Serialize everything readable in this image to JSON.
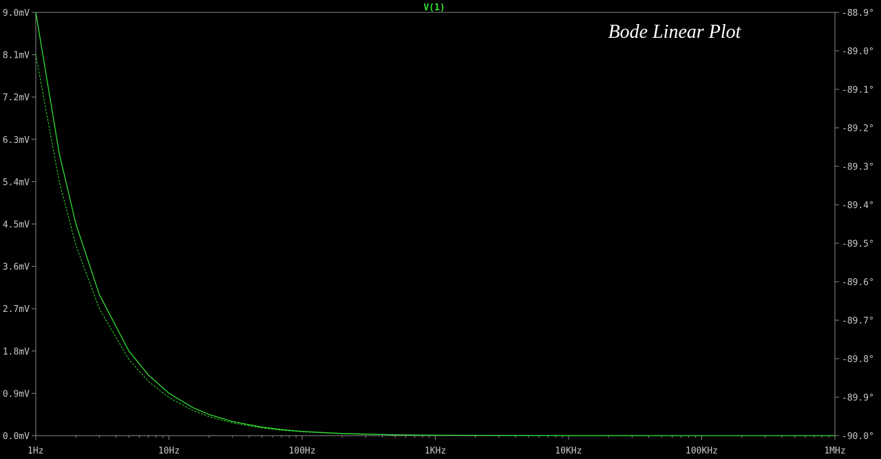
{
  "chart_data": {
    "type": "line",
    "title": "Bode Linear Plot",
    "trace_label": "V(1)",
    "x_scale": "log",
    "x_range_hz": [
      1,
      1000000
    ],
    "x_ticks": [
      {
        "value": 1,
        "label": "1Hz"
      },
      {
        "value": 10,
        "label": "10Hz"
      },
      {
        "value": 100,
        "label": "100Hz"
      },
      {
        "value": 1000,
        "label": "1KHz"
      },
      {
        "value": 10000,
        "label": "10KHz"
      },
      {
        "value": 100000,
        "label": "100KHz"
      },
      {
        "value": 1000000,
        "label": "1MHz"
      }
    ],
    "y_left": {
      "unit": "mV",
      "range": [
        0,
        9.0
      ],
      "tick_labels": [
        "0.0mV",
        "0.9mV",
        "1.8mV",
        "2.7mV",
        "3.6mV",
        "4.5mV",
        "5.4mV",
        "6.3mV",
        "7.2mV",
        "8.1mV",
        "9.0mV"
      ]
    },
    "y_right": {
      "unit": "degrees",
      "range": [
        -90.0,
        -88.9
      ],
      "tick_labels": [
        "-90.0°",
        "-89.9°",
        "-89.8°",
        "-89.7°",
        "-89.6°",
        "-89.5°",
        "-89.4°",
        "-89.3°",
        "-89.2°",
        "-89.1°",
        "-89.0°",
        "-88.9°"
      ]
    },
    "grid": false,
    "series": [
      {
        "role": "magnitude",
        "style": "solid",
        "color": "#32e032",
        "x": [
          1,
          1.5,
          2,
          3,
          5,
          7,
          10,
          15,
          20,
          30,
          50,
          70,
          100,
          200,
          500,
          1000,
          10000,
          100000,
          1000000
        ],
        "y": [
          9.0,
          6.0,
          4.5,
          3.0,
          1.8,
          1.29,
          0.9,
          0.6,
          0.45,
          0.3,
          0.18,
          0.129,
          0.09,
          0.045,
          0.018,
          0.009,
          0.0009,
          9e-05,
          9e-06
        ]
      },
      {
        "role": "phase",
        "style": "dashed",
        "color": "#32e032",
        "x": [
          1,
          1.5,
          2,
          3,
          5,
          7,
          10,
          15,
          20,
          30,
          50,
          70,
          100,
          200,
          500,
          1000,
          10000,
          100000,
          1000000
        ],
        "y": [
          -89.01,
          -89.34,
          -89.505,
          -89.67,
          -89.802,
          -89.859,
          -89.901,
          -89.934,
          -89.9505,
          -89.967,
          -89.9802,
          -89.9859,
          -89.9901,
          -89.99505,
          -89.998,
          -89.999,
          -89.9999,
          -89.99999,
          -90.0
        ]
      }
    ]
  }
}
